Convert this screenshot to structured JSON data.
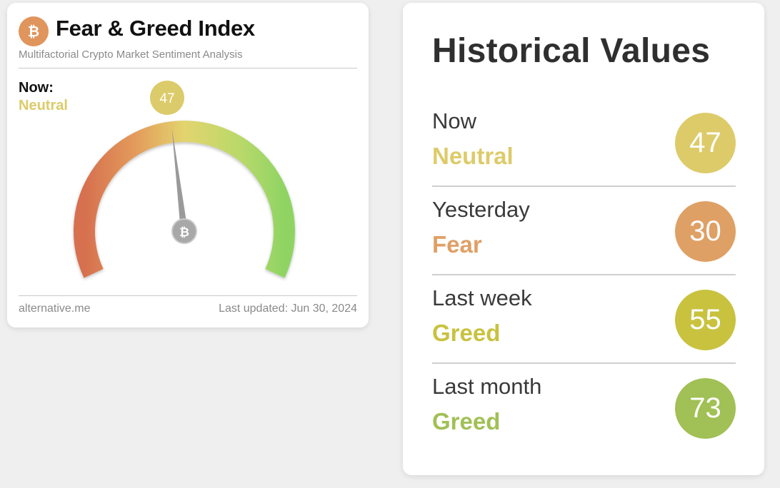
{
  "fear_greed_card": {
    "title": "Fear & Greed Index",
    "subtitle": "Multifactorial Crypto Market Sentiment Analysis",
    "now_label": "Now:",
    "now_classification": "Neutral",
    "value": "47",
    "value_fraction": 0.47,
    "footer_source": "alternative.me",
    "footer_updated": "Last updated: Jun 30, 2024",
    "logo_icon": "bitcoin-icon",
    "colors": {
      "neutral": "#dccb6a",
      "logo": "#e0955d",
      "needle": "#9a9a9a"
    }
  },
  "historical": {
    "title": "Historical Values",
    "rows": [
      {
        "period": "Now",
        "classification": "Neutral",
        "value": "47",
        "color": "#ddcb6a"
      },
      {
        "period": "Yesterday",
        "classification": "Fear",
        "value": "30",
        "color": "#dfa065"
      },
      {
        "period": "Last week",
        "classification": "Greed",
        "value": "55",
        "color": "#c8c23f"
      },
      {
        "period": "Last month",
        "classification": "Greed",
        "value": "73",
        "color": "#a1c055"
      }
    ]
  }
}
